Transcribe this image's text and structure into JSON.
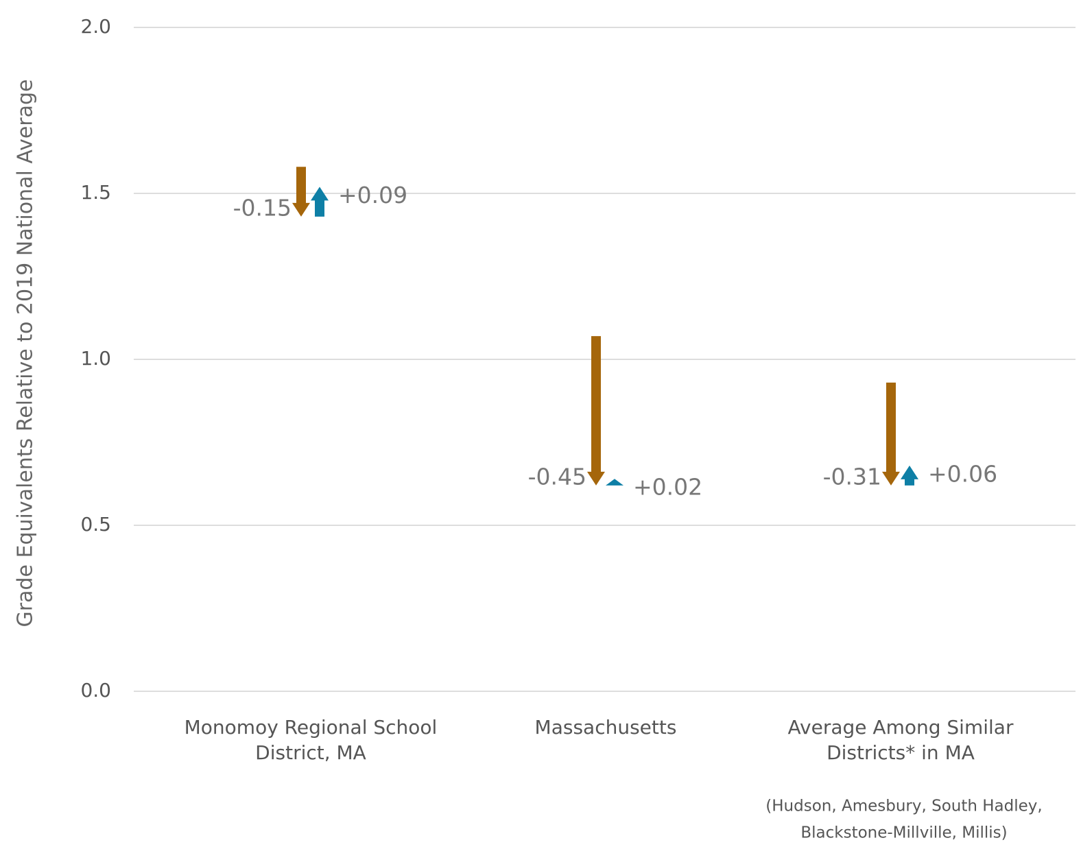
{
  "chart_data": {
    "type": "arrow",
    "y_label": "Grade Equivalents Relative to 2019 National Average",
    "categories": [
      [
        "Monomoy Regional School",
        "District, MA"
      ],
      [
        "Massachusetts"
      ],
      [
        "Average Among Similar",
        "Districts* in MA"
      ]
    ],
    "note": [
      "(Hudson, Amesbury, South Hadley,",
      "Blackstone-Millville, Millis)"
    ],
    "start": [
      1.58,
      1.07,
      0.93
    ],
    "decline": {
      "color": "#a5660b",
      "values": [
        -0.15,
        -0.45,
        -0.31
      ]
    },
    "recovery": {
      "color": "#0e7fa6",
      "values": [
        0.09,
        0.02,
        0.06
      ],
      "value_labels": [
        "+0.09",
        "+0.02",
        "+0.06"
      ]
    },
    "ylim": [
      0,
      2
    ],
    "yticks": [
      {
        "value": 0,
        "label": "0.0"
      },
      0.5,
      {
        "value": 1,
        "label": "1.0"
      },
      1.5,
      {
        "value": 2,
        "label": "2.0"
      }
    ],
    "grid": true
  }
}
